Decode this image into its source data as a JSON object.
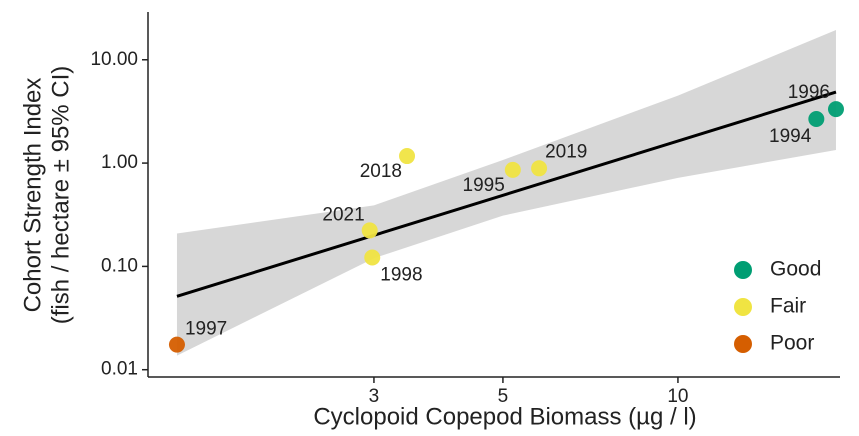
{
  "chart_data": {
    "type": "scatter",
    "x_label": "Cyclopoid Copepod Biomass (µg / l)",
    "y_label": [
      "Cohort Strength Index",
      "(fish / hectare ± 95% CI)"
    ],
    "x_log": true,
    "y_log": true,
    "xlim": [
      1.226,
      19.0
    ],
    "ylim": [
      0.0085,
      29
    ],
    "xticks": [
      3,
      5,
      10
    ],
    "yticks": [
      {
        "value": 0.01,
        "label": "0.01"
      },
      {
        "value": 0.1,
        "label": "0.10"
      },
      {
        "value": 1,
        "label": "1.00"
      },
      {
        "value": 10,
        "label": "10.00"
      }
    ],
    "grid": false,
    "legend_position": "lower-right",
    "series": [
      {
        "name": "Good",
        "color": "#009e73",
        "x": [
          17.3,
          18.7
        ],
        "values": [
          2.67,
          3.33
        ],
        "point_labels": [
          "1994",
          "1996"
        ]
      },
      {
        "name": "Fair",
        "color": "#f0e442",
        "x": [
          3.42,
          5.2,
          5.77,
          2.95,
          2.98
        ],
        "values": [
          1.17,
          0.86,
          0.89,
          0.223,
          0.122
        ],
        "point_labels": [
          "2018",
          "1995",
          "2019",
          "2021",
          "1998"
        ]
      },
      {
        "name": "Poor",
        "color": "#d55e00",
        "x": [
          1.375
        ],
        "values": [
          0.0175
        ],
        "point_labels": [
          "1997"
        ]
      }
    ],
    "fit": {
      "color": "#000000",
      "x": [
        1.375,
        18.7
      ],
      "values": [
        0.0513,
        4.87
      ]
    },
    "band": {
      "color": "#d3d3d3",
      "x": [
        1.375,
        3,
        5,
        10,
        18.7
      ],
      "lower": [
        0.0137,
        0.12,
        0.31,
        0.72,
        1.34
      ],
      "upper": [
        0.208,
        0.39,
        1.07,
        4.5,
        19.4
      ]
    }
  }
}
